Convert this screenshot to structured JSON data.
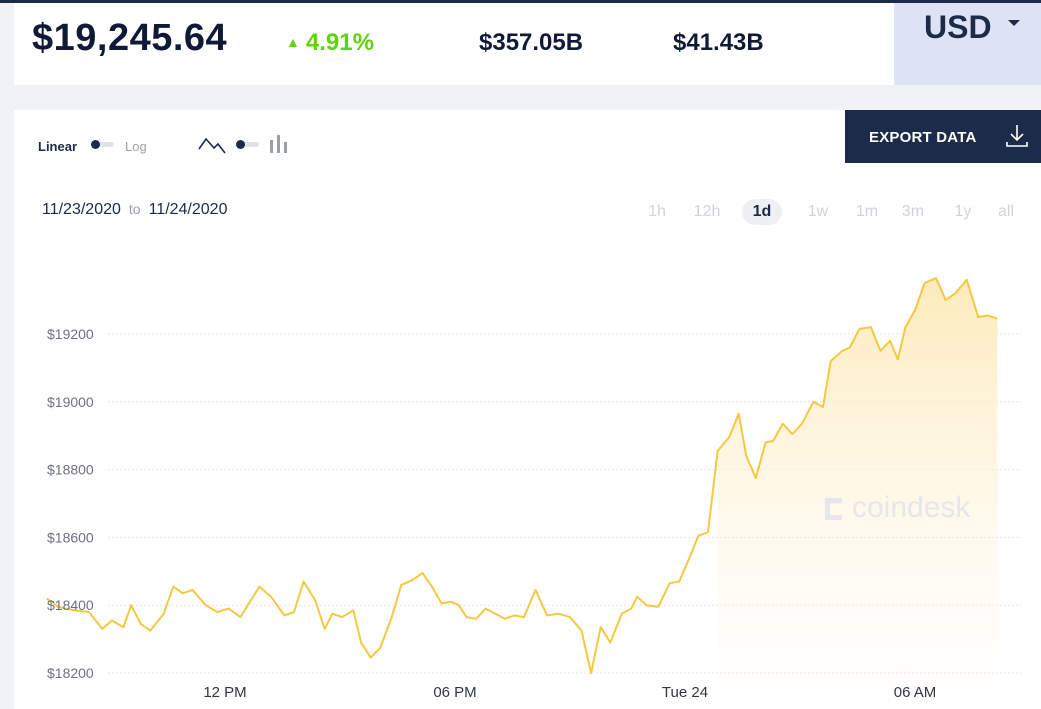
{
  "stats": {
    "price": "$19,245.64",
    "change": "4.91%",
    "market_cap": "$357.05B",
    "volume": "$41.43B"
  },
  "currency": {
    "label": "USD",
    "icon": "chevron-down-icon"
  },
  "controls": {
    "scale_linear": "Linear",
    "scale_log": "Log",
    "export_label": "EXPORT DATA",
    "line_chart_icon": "line-chart-icon",
    "bar_chart_icon": "bar-chart-icon",
    "download_icon": "download-icon"
  },
  "date_range": {
    "from": "11/23/2020",
    "to_word": "to",
    "to": "11/24/2020"
  },
  "ranges": [
    {
      "label": "1h",
      "active": false
    },
    {
      "label": "12h",
      "active": false
    },
    {
      "label": "1d",
      "active": true
    },
    {
      "label": "1w",
      "active": false
    },
    {
      "label": "1m",
      "active": false
    },
    {
      "label": "3m",
      "active": false
    },
    {
      "label": "1y",
      "active": false
    },
    {
      "label": "all",
      "active": false
    }
  ],
  "watermark": "coindesk",
  "colors": {
    "line": "#f5c842",
    "fill": "#fdf1cf",
    "accent": "#5fd40c",
    "navy": "#1c2b4a"
  },
  "chart_data": {
    "type": "area",
    "title": "",
    "xlabel": "",
    "ylabel": "",
    "ylim": [
      18200,
      19200
    ],
    "yticks": [
      "$18200",
      "$18400",
      "$18600",
      "$18800",
      "$19000",
      "$19200"
    ],
    "ytick_values": [
      18200,
      18400,
      18600,
      18800,
      19000,
      19200
    ],
    "xticks": [
      "12 PM",
      "06 PM",
      "Tue 24",
      "06 AM"
    ],
    "xtick_hours": [
      12,
      18,
      24,
      30
    ],
    "x_hours": [
      7.35,
      7.65,
      8.05,
      8.45,
      8.8,
      9.05,
      9.35,
      9.55,
      9.8,
      10.05,
      10.4,
      10.65,
      10.9,
      11.15,
      11.5,
      11.8,
      12.1,
      12.4,
      12.65,
      12.9,
      13.2,
      13.55,
      13.8,
      14.05,
      14.35,
      14.6,
      14.8,
      15.05,
      15.35,
      15.55,
      15.8,
      16.05,
      16.35,
      16.6,
      16.9,
      17.15,
      17.4,
      17.65,
      17.9,
      18.1,
      18.3,
      18.55,
      18.8,
      19.05,
      19.3,
      19.55,
      19.8,
      20.1,
      20.4,
      20.7,
      21.0,
      21.3,
      21.55,
      21.8,
      22.05,
      22.35,
      22.6,
      22.75,
      23.0,
      23.3,
      23.6,
      23.85,
      24.1,
      24.35,
      24.6,
      24.85,
      25.15,
      25.4,
      25.6,
      25.85,
      26.1,
      26.3,
      26.55,
      26.8,
      27.05,
      27.35,
      27.6,
      27.8,
      28.1,
      28.3,
      28.55,
      28.85,
      29.1,
      29.35,
      29.55,
      29.75,
      30.0,
      30.25,
      30.55,
      30.8,
      31.05,
      31.35,
      31.65,
      31.9,
      32.15
    ],
    "values": [
      18420,
      18395,
      18385,
      18380,
      18330,
      18355,
      18335,
      18400,
      18345,
      18325,
      18375,
      18455,
      18435,
      18445,
      18400,
      18380,
      18390,
      18365,
      18410,
      18455,
      18425,
      18370,
      18380,
      18470,
      18415,
      18330,
      18375,
      18365,
      18385,
      18290,
      18245,
      18275,
      18365,
      18460,
      18475,
      18495,
      18455,
      18405,
      18410,
      18400,
      18365,
      18360,
      18390,
      18375,
      18360,
      18370,
      18365,
      18445,
      18370,
      18375,
      18365,
      18325,
      18200,
      18335,
      18290,
      18375,
      18390,
      18425,
      18400,
      18395,
      18465,
      18470,
      18535,
      18605,
      18615,
      18855,
      18895,
      18965,
      18840,
      18775,
      18880,
      18885,
      18935,
      18905,
      18935,
      19000,
      18985,
      19120,
      19150,
      19160,
      19215,
      19220,
      19150,
      19180,
      19125,
      19220,
      19270,
      19350,
      19365,
      19300,
      19320,
      19360,
      19250,
      19255,
      19245
    ]
  }
}
